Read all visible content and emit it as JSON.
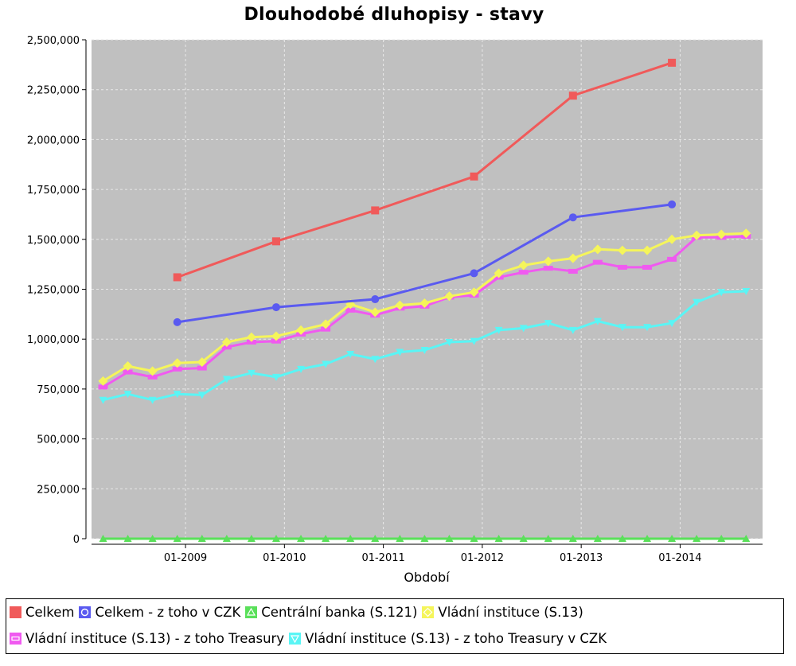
{
  "chart_data": {
    "type": "line",
    "title": "Dlouhodobé dluhopisy - stavy",
    "xlabel": "Období",
    "ylabel": "",
    "ylim": [
      0,
      2500000
    ],
    "y_ticks": [
      0,
      250000,
      500000,
      750000,
      1000000,
      1250000,
      1500000,
      1750000,
      2000000,
      2250000,
      2500000
    ],
    "y_tick_labels": [
      "0",
      "250,000",
      "500,000",
      "750,000",
      "1,000,000",
      "1,250,000",
      "1,500,000",
      "1,750,000",
      "2,000,000",
      "2,250,000",
      "2,500,000"
    ],
    "x_range_months": [
      "2008-03",
      "2014-11"
    ],
    "x_ticks": [
      "2009-01",
      "2010-01",
      "2011-01",
      "2012-01",
      "2013-01",
      "2014-01"
    ],
    "x_tick_labels": [
      "01-2009",
      "01-2010",
      "01-2011",
      "01-2012",
      "01-2013",
      "01-2014"
    ],
    "grid": true,
    "legend_position": "bottom",
    "series": [
      {
        "name": "Celkem",
        "color": "#f05a5a",
        "marker": "square",
        "x": [
          "2008-12",
          "2009-12",
          "2010-12",
          "2011-12",
          "2012-12",
          "2013-12"
        ],
        "y": [
          1310000,
          1490000,
          1645000,
          1815000,
          2220000,
          2385000
        ]
      },
      {
        "name": "Celkem - z toho v CZK",
        "color": "#5a5af0",
        "marker": "circle",
        "x": [
          "2008-12",
          "2009-12",
          "2010-12",
          "2011-12",
          "2012-12",
          "2013-12"
        ],
        "y": [
          1085000,
          1160000,
          1200000,
          1330000,
          1610000,
          1675000
        ]
      },
      {
        "name": "Centrální banka (S.121)",
        "color": "#5ae05a",
        "marker": "triangle-up",
        "x": [
          "2008-03",
          "2008-06",
          "2008-09",
          "2008-12",
          "2009-03",
          "2009-06",
          "2009-09",
          "2009-12",
          "2010-03",
          "2010-06",
          "2010-09",
          "2010-12",
          "2011-03",
          "2011-06",
          "2011-09",
          "2011-12",
          "2012-03",
          "2012-06",
          "2012-09",
          "2012-12",
          "2013-03",
          "2013-06",
          "2013-09",
          "2013-12",
          "2014-03",
          "2014-06",
          "2014-09"
        ],
        "y": [
          0,
          0,
          0,
          0,
          0,
          0,
          0,
          0,
          0,
          0,
          0,
          0,
          0,
          0,
          0,
          0,
          0,
          0,
          0,
          0,
          0,
          0,
          0,
          0,
          0,
          0,
          0
        ]
      },
      {
        "name": "Vládní instituce (S.13)",
        "color": "#f5f55a",
        "marker": "diamond",
        "x": [
          "2008-03",
          "2008-06",
          "2008-09",
          "2008-12",
          "2009-03",
          "2009-06",
          "2009-09",
          "2009-12",
          "2010-03",
          "2010-06",
          "2010-09",
          "2010-12",
          "2011-03",
          "2011-06",
          "2011-09",
          "2011-12",
          "2012-03",
          "2012-06",
          "2012-09",
          "2012-12",
          "2013-03",
          "2013-06",
          "2013-09",
          "2013-12",
          "2014-03",
          "2014-06",
          "2014-09"
        ],
        "y": [
          790000,
          865000,
          840000,
          880000,
          885000,
          985000,
          1010000,
          1015000,
          1045000,
          1075000,
          1175000,
          1135000,
          1170000,
          1180000,
          1215000,
          1235000,
          1330000,
          1370000,
          1390000,
          1405000,
          1450000,
          1445000,
          1445000,
          1500000,
          1520000,
          1525000,
          1530000
        ]
      },
      {
        "name": "Vládní instituce (S.13) - z toho Treasury",
        "color": "#f05af0",
        "marker": "rect-h",
        "x": [
          "2008-03",
          "2008-06",
          "2008-09",
          "2008-12",
          "2009-03",
          "2009-06",
          "2009-09",
          "2009-12",
          "2010-03",
          "2010-06",
          "2010-09",
          "2010-12",
          "2011-03",
          "2011-06",
          "2011-09",
          "2011-12",
          "2012-03",
          "2012-06",
          "2012-09",
          "2012-12",
          "2013-03",
          "2013-06",
          "2013-09",
          "2013-12",
          "2014-03",
          "2014-06",
          "2014-09"
        ],
        "y": [
          760000,
          835000,
          810000,
          850000,
          855000,
          960000,
          985000,
          990000,
          1025000,
          1050000,
          1145000,
          1120000,
          1155000,
          1165000,
          1210000,
          1220000,
          1310000,
          1335000,
          1355000,
          1340000,
          1385000,
          1360000,
          1360000,
          1400000,
          1510000,
          1510000,
          1515000
        ]
      },
      {
        "name": "Vládní instituce (S.13) - z toho Treasury v CZK",
        "color": "#5af5f5",
        "marker": "triangle-down",
        "x": [
          "2008-03",
          "2008-06",
          "2008-09",
          "2008-12",
          "2009-03",
          "2009-06",
          "2009-09",
          "2009-12",
          "2010-03",
          "2010-06",
          "2010-09",
          "2010-12",
          "2011-03",
          "2011-06",
          "2011-09",
          "2011-12",
          "2012-03",
          "2012-06",
          "2012-09",
          "2012-12",
          "2013-03",
          "2013-06",
          "2013-09",
          "2013-12",
          "2014-03",
          "2014-06",
          "2014-09"
        ],
        "y": [
          695000,
          725000,
          695000,
          725000,
          720000,
          800000,
          830000,
          810000,
          850000,
          875000,
          925000,
          900000,
          935000,
          945000,
          985000,
          990000,
          1045000,
          1055000,
          1080000,
          1045000,
          1090000,
          1060000,
          1060000,
          1080000,
          1185000,
          1235000,
          1240000
        ]
      }
    ]
  }
}
